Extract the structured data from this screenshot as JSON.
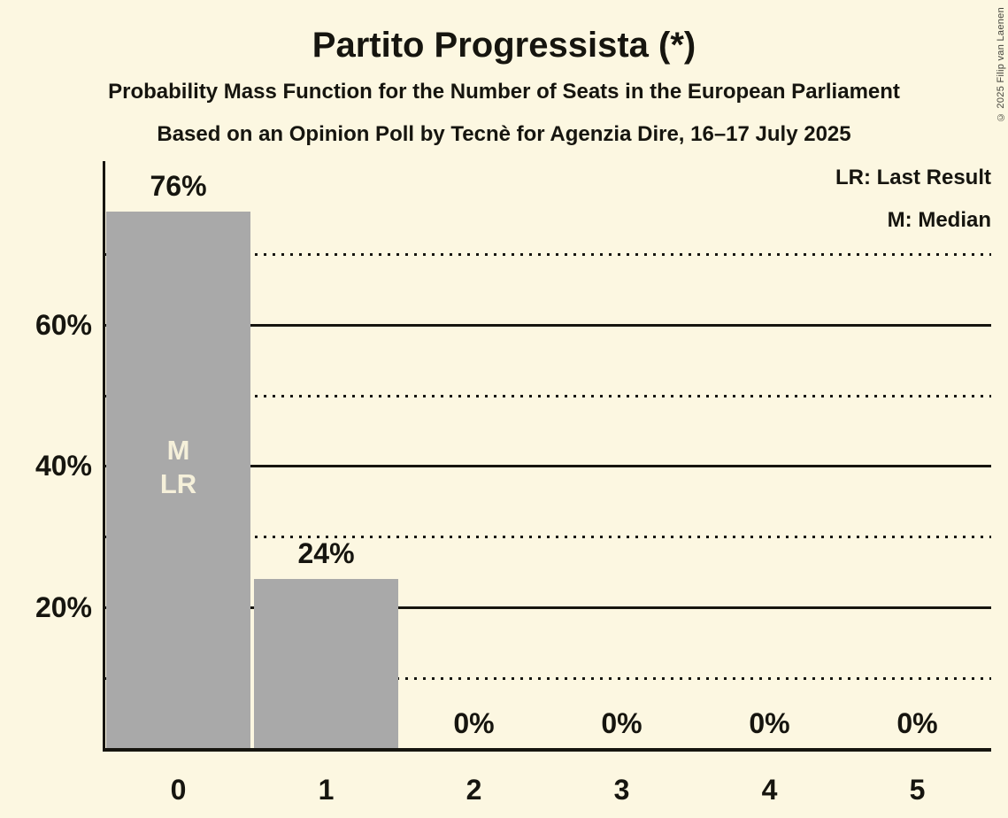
{
  "header": {
    "title": "Partito Progressista (*)",
    "subtitle": "Probability Mass Function for the Number of Seats in the European Parliament",
    "source_line": "Based on an Opinion Poll by Tecnè for Agenzia Dire, 16–17 July 2025"
  },
  "legend": {
    "last_result": "LR: Last Result",
    "median": "M: Median"
  },
  "copyright": "© 2025 Filip van Laenen",
  "colors": {
    "background": "#FCF7E1",
    "bar": "#A9A9A9",
    "text": "#16150F",
    "marker_text": "#F5F0DA"
  },
  "chart_data": {
    "type": "bar",
    "title": "Partito Progressista (*)",
    "categories": [
      "0",
      "1",
      "2",
      "3",
      "4",
      "5"
    ],
    "values": [
      76,
      24,
      0,
      0,
      0,
      0
    ],
    "value_labels": [
      "76%",
      "24%",
      "0%",
      "0%",
      "0%",
      "0%"
    ],
    "bar_markers": [
      [
        "M",
        "LR"
      ],
      [],
      [],
      [],
      [],
      []
    ],
    "ylim": [
      0,
      83
    ],
    "ytick_values": [
      20,
      40,
      60
    ],
    "ytick_labels": [
      "20%",
      "40%",
      "60%"
    ],
    "solid_gridlines": [
      20,
      40,
      60
    ],
    "dotted_gridlines": [
      10,
      30,
      50,
      70
    ],
    "grid": "horizontal",
    "legend_position": "top-right"
  }
}
